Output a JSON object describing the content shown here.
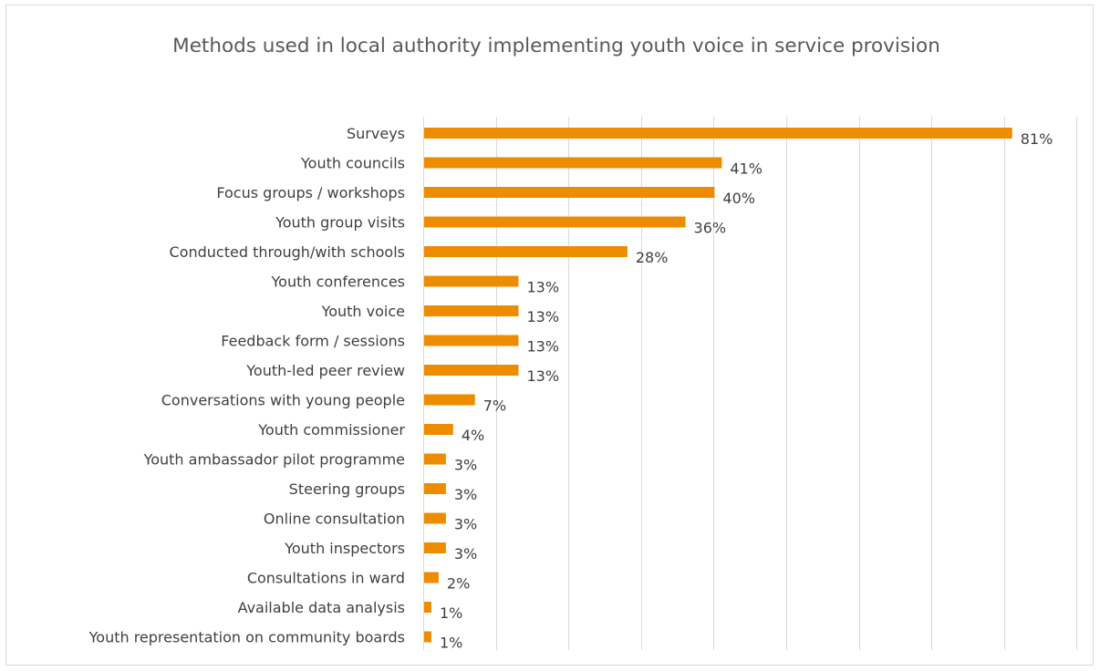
{
  "chart_data": {
    "type": "bar",
    "orientation": "horizontal",
    "title": "Methods used in local authority implementing youth voice in service provision",
    "categories": [
      "Surveys",
      "Youth councils",
      "Focus groups / workshops",
      "Youth group visits",
      "Conducted through/with schools",
      "Youth conferences",
      "Youth voice",
      "Feedback form / sessions",
      "Youth-led peer review",
      "Conversations with young people",
      "Youth commissioner",
      "Youth ambassador pilot programme",
      "Steering groups",
      "Online consultation",
      "Youth inspectors",
      "Consultations in ward",
      "Available data analysis",
      "Youth representation on community boards"
    ],
    "values": [
      81,
      41,
      40,
      36,
      28,
      13,
      13,
      13,
      13,
      7,
      4,
      3,
      3,
      3,
      3,
      2,
      1,
      1
    ],
    "value_labels": [
      "81%",
      "41%",
      "40%",
      "36%",
      "28%",
      "13%",
      "13%",
      "13%",
      "13%",
      "7%",
      "4%",
      "3%",
      "3%",
      "3%",
      "3%",
      "2%",
      "1%",
      "1%"
    ],
    "xlim": [
      0,
      90
    ],
    "x_gridline_step": 10,
    "grid": "vertical",
    "bar_color": "#ee8c00",
    "axis_tick_labels_visible": false,
    "legend": "none"
  }
}
